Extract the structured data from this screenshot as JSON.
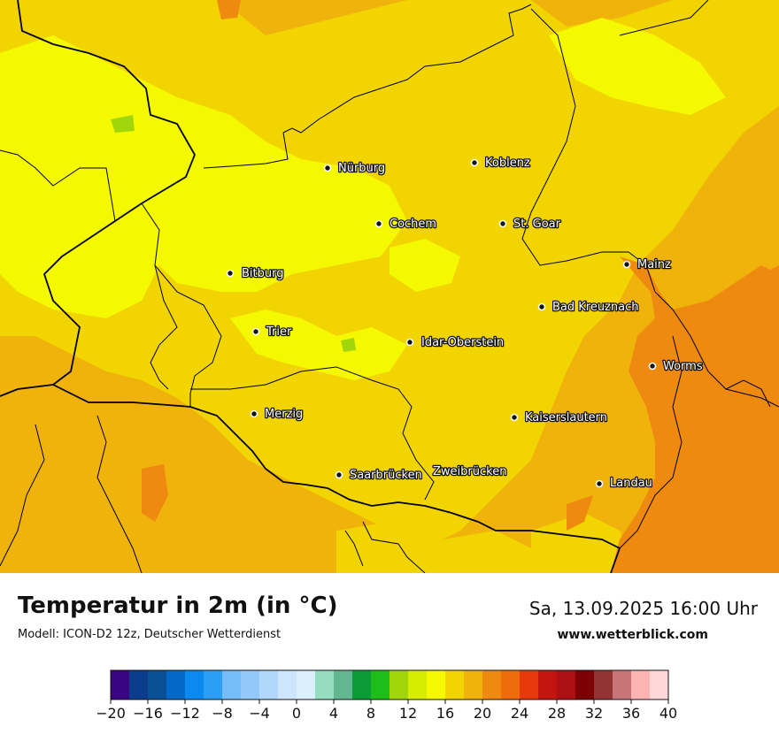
{
  "title": "Temperatur in 2m (in °C)",
  "model": "Modell: ICON-D2 12z, Deutscher Wetterdienst",
  "datetime": "Sa, 13.09.2025 16:00 Uhr",
  "website": "www.wetterblick.com",
  "cities": [
    {
      "name": "Nürburg"
    },
    {
      "name": "Koblenz"
    },
    {
      "name": "Cochem"
    },
    {
      "name": "St. Goar"
    },
    {
      "name": "Mainz"
    },
    {
      "name": "Bitburg"
    },
    {
      "name": "Bad Kreuznach"
    },
    {
      "name": "Trier"
    },
    {
      "name": "Idar-Oberstein"
    },
    {
      "name": "Worms"
    },
    {
      "name": "Merzig"
    },
    {
      "name": "Kaiserslautern"
    },
    {
      "name": "Saarbrücken"
    },
    {
      "name": "Zweibrücken"
    },
    {
      "name": "Landau"
    }
  ],
  "legend": {
    "min": -20,
    "max": 40,
    "step": 2,
    "tick_labels": [
      "−20",
      "−16",
      "−12",
      "−8",
      "−4",
      "0",
      "4",
      "8",
      "12",
      "16",
      "20",
      "24",
      "28",
      "32",
      "36",
      "40"
    ],
    "colors": [
      "#3a0582",
      "#0c3c8c",
      "#0b4f94",
      "#0468c8",
      "#0a89f0",
      "#2b9ef5",
      "#76bdf9",
      "#92c8fa",
      "#b1d8fc",
      "#cde6fd",
      "#dceffd",
      "#95dcc0",
      "#62b690",
      "#0b9b37",
      "#1ebd19",
      "#a2d60c",
      "#d6ec00",
      "#f4f900",
      "#f2d400",
      "#f0b30c",
      "#ee8a10",
      "#ef6c0c",
      "#e8390c",
      "#c3140f",
      "#ad1012",
      "#7d0002",
      "#923334",
      "#c77577",
      "#fbb4b2",
      "#fed7d7"
    ]
  },
  "map_colors": {
    "yellow_bright": "#f4f900",
    "yellow": "#f2d400",
    "gold": "#f0b30c",
    "orange": "#ee8a10",
    "green_patch": "#a2d60c"
  }
}
